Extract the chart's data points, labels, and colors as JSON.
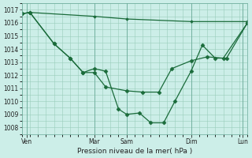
{
  "background_color": "#cceee8",
  "grid_color": "#99ccbb",
  "line_color": "#1a6b3a",
  "marker_color": "#1a6b3a",
  "xlabel": "Pression niveau de la mer( hPa )",
  "ylim": [
    1007.5,
    1017.5
  ],
  "yticks": [
    1008,
    1009,
    1010,
    1011,
    1012,
    1013,
    1014,
    1015,
    1016,
    1017
  ],
  "xlim": [
    0,
    14
  ],
  "xtick_labels": [
    "Ven",
    "Mar",
    "Sam",
    "Dim",
    "Lun"
  ],
  "xtick_positions": [
    0.3,
    4.5,
    6.5,
    10.5,
    13.7
  ],
  "vline_positions": [
    0.3,
    4.5,
    6.5,
    10.5,
    13.7
  ],
  "line1_x": [
    0,
    0.5,
    4.5,
    6.5,
    10.5,
    14
  ],
  "line1_y": [
    1016.7,
    1016.8,
    1016.5,
    1016.3,
    1016.1,
    1016.1
  ],
  "line2_x": [
    0,
    0.5,
    2.0,
    3.0,
    3.8,
    4.5,
    5.2,
    6.5,
    7.5,
    8.5,
    9.3,
    10.5,
    11.5,
    12.5,
    14
  ],
  "line2_y": [
    1016.7,
    1016.8,
    1014.4,
    1013.3,
    1012.2,
    1012.2,
    1011.1,
    1010.8,
    1010.7,
    1010.7,
    1012.5,
    1013.1,
    1013.4,
    1013.3,
    1016.0
  ],
  "line3_x": [
    0,
    0.5,
    2.0,
    3.0,
    3.8,
    4.5,
    5.2,
    6.0,
    6.5,
    7.3,
    8.0,
    8.8,
    9.5,
    10.5,
    11.2,
    12.0,
    12.7,
    14
  ],
  "line3_y": [
    1016.7,
    1016.8,
    1014.4,
    1013.3,
    1012.2,
    1012.5,
    1012.3,
    1009.4,
    1009.0,
    1009.1,
    1008.35,
    1008.35,
    1010.0,
    1012.3,
    1014.3,
    1013.3,
    1013.3,
    1016.0
  ]
}
